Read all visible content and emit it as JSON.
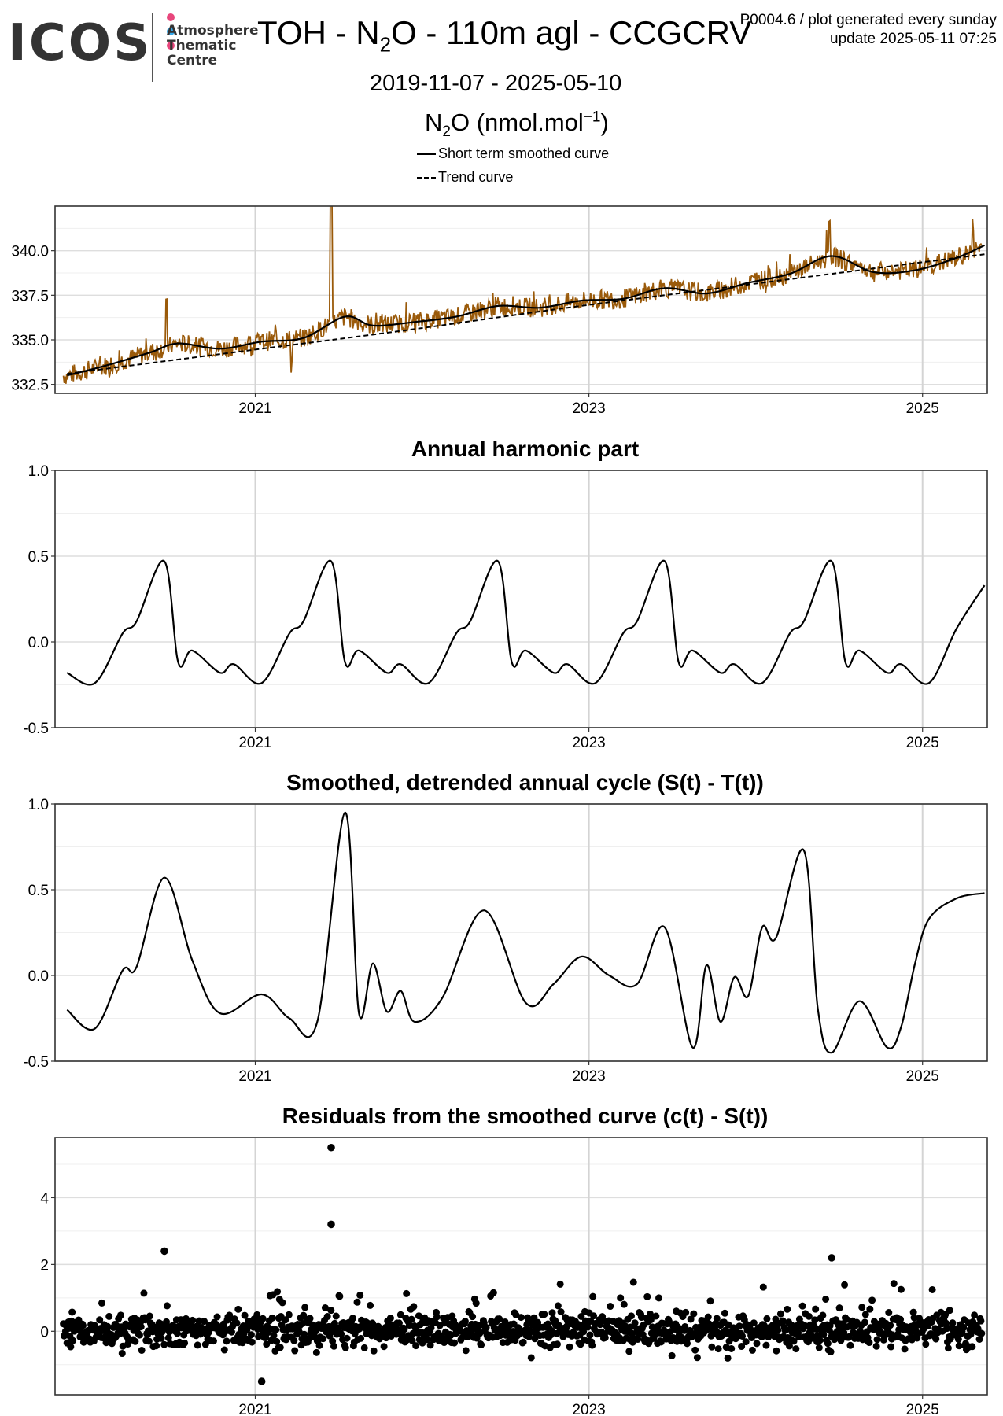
{
  "logo": {
    "wordmark": "ICOS",
    "line1": "Atmosphere",
    "line2": "Thematic",
    "line3": "Centre",
    "dot_colors": [
      "#e8467c",
      "#35a7e8",
      "#e8467c"
    ]
  },
  "header": {
    "title_pre": "TOH - N",
    "title_sub": "2",
    "title_post": "O - 110m agl - CCGCRV",
    "date_range": "2019-11-07 - 2025-05-10",
    "stamp_line1": "P0004.6 / plot generated every sunday",
    "stamp_line2": "update  2025-05-11 07:25"
  },
  "ylabel": {
    "pre": "N",
    "sub": "2",
    "post": "O (nmol.mol",
    "sup": "−1",
    "close": ")"
  },
  "legend": {
    "solid": "Short term smoothed curve",
    "dashed": "Trend curve"
  },
  "colors": {
    "data": "#9a5a0a",
    "curve": "#000000",
    "grid": "#d9d9d9"
  },
  "chart_data": [
    {
      "type": "line",
      "title": "",
      "x_ticks": [
        "2021",
        "2023",
        "2025"
      ],
      "x_range": [
        "2019-11-07",
        "2025-05-10"
      ],
      "ylim": [
        332.0,
        342.5
      ],
      "y_ticks": [
        "332.5",
        "335.0",
        "337.5",
        "340.0"
      ],
      "series": [
        {
          "name": "Short term smoothed curve",
          "x": [
            "2019-11",
            "2020-02",
            "2020-05",
            "2020-07",
            "2020-10",
            "2021-01",
            "2021-04",
            "2021-07",
            "2021-09",
            "2021-12",
            "2022-03",
            "2022-06",
            "2022-09",
            "2022-12",
            "2023-03",
            "2023-06",
            "2023-09",
            "2023-12",
            "2024-03",
            "2024-06",
            "2024-09",
            "2024-12",
            "2025-03",
            "2025-05"
          ],
          "y": [
            333.0,
            333.6,
            334.3,
            334.8,
            334.5,
            334.9,
            335.1,
            336.3,
            335.8,
            336.0,
            336.3,
            336.9,
            336.8,
            337.2,
            337.3,
            337.9,
            337.6,
            338.2,
            338.7,
            339.7,
            338.8,
            338.9,
            339.6,
            340.3
          ]
        },
        {
          "name": "Trend curve",
          "x": [
            "2019-11",
            "2020-11",
            "2021-11",
            "2022-11",
            "2023-11",
            "2024-11",
            "2025-05"
          ],
          "y": [
            333.1,
            334.3,
            335.5,
            336.8,
            338.0,
            339.2,
            339.8
          ]
        }
      ]
    },
    {
      "type": "line",
      "title": "Annual harmonic part",
      "x_ticks": [
        "2021",
        "2023",
        "2025"
      ],
      "ylim": [
        -0.5,
        1.0
      ],
      "y_ticks": [
        "-0.5",
        "0.0",
        "0.5",
        "1.0"
      ],
      "series": [
        {
          "x": [
            "2019-11",
            "2020-01",
            "2020-03",
            "2020-04",
            "2020-06",
            "2020-07",
            "2020-08",
            "2020-10",
            "2020-11",
            "2021-01",
            "2021-03",
            "2021-04",
            "2021-06",
            "2021-07",
            "2021-08",
            "2021-10",
            "2021-11",
            "2022-01",
            "2022-03",
            "2022-04",
            "2022-06",
            "2022-07",
            "2022-08",
            "2022-10",
            "2022-11",
            "2023-01",
            "2023-03",
            "2023-04",
            "2023-06",
            "2023-07",
            "2023-08",
            "2023-10",
            "2023-11",
            "2024-01",
            "2024-03",
            "2024-04",
            "2024-06",
            "2024-07",
            "2024-08",
            "2024-10",
            "2024-11",
            "2025-01",
            "2025-03",
            "2025-05"
          ],
          "y": [
            -0.18,
            -0.24,
            0.05,
            0.12,
            0.47,
            -0.12,
            -0.05,
            -0.18,
            -0.13,
            -0.24,
            0.05,
            0.12,
            0.47,
            -0.12,
            -0.05,
            -0.18,
            -0.13,
            -0.24,
            0.05,
            0.12,
            0.47,
            -0.12,
            -0.05,
            -0.18,
            -0.13,
            -0.24,
            0.05,
            0.12,
            0.47,
            -0.12,
            -0.05,
            -0.18,
            -0.13,
            -0.24,
            0.05,
            0.12,
            0.47,
            -0.12,
            -0.05,
            -0.18,
            -0.13,
            -0.24,
            0.08,
            0.33
          ]
        }
      ]
    },
    {
      "type": "line",
      "title": "Smoothed, detrended annual cycle (S(t) - T(t))",
      "x_ticks": [
        "2021",
        "2023",
        "2025"
      ],
      "ylim": [
        -0.5,
        1.0
      ],
      "y_ticks": [
        "-0.5",
        "0.0",
        "0.5",
        "1.0"
      ],
      "series": [
        {
          "x": [
            "2019-11",
            "2020-01",
            "2020-03",
            "2020-04",
            "2020-06",
            "2020-08",
            "2020-10",
            "2021-01",
            "2021-03",
            "2021-05",
            "2021-07",
            "2021-08",
            "2021-09",
            "2021-10",
            "2021-11",
            "2021-12",
            "2022-02",
            "2022-05",
            "2022-08",
            "2022-10",
            "2022-12",
            "2023-02",
            "2023-04",
            "2023-06",
            "2023-08",
            "2023-09",
            "2023-10",
            "2023-11",
            "2023-12",
            "2024-01",
            "2024-02",
            "2024-04",
            "2024-05",
            "2024-06",
            "2024-08",
            "2024-10",
            "2024-11",
            "2024-12",
            "2025-01",
            "2025-03",
            "2025-05"
          ],
          "y": [
            -0.2,
            -0.31,
            0.03,
            0.05,
            0.57,
            0.09,
            -0.22,
            -0.11,
            -0.25,
            -0.27,
            0.95,
            -0.22,
            0.07,
            -0.21,
            -0.09,
            -0.27,
            -0.13,
            0.38,
            -0.16,
            -0.05,
            0.11,
            0.0,
            -0.05,
            0.28,
            -0.42,
            0.06,
            -0.27,
            -0.01,
            -0.12,
            0.28,
            0.22,
            0.73,
            -0.19,
            -0.45,
            -0.15,
            -0.42,
            -0.3,
            0.07,
            0.33,
            0.45,
            0.48
          ]
        }
      ]
    },
    {
      "type": "scatter",
      "title": "Residuals from the smoothed curve (c(t) - S(t))",
      "x_ticks": [
        "2021",
        "2023",
        "2025"
      ],
      "ylim": [
        -1.9,
        5.8
      ],
      "y_ticks": [
        "0",
        "2",
        "4"
      ],
      "outliers": [
        {
          "x": "2021-06",
          "y": 5.5
        },
        {
          "x": "2021-06",
          "y": 3.2
        },
        {
          "x": "2020-06",
          "y": 2.4
        },
        {
          "x": "2024-06",
          "y": 2.2
        },
        {
          "x": "2021-01",
          "y": -1.5
        }
      ],
      "spread": {
        "min": -1.0,
        "max": 1.7,
        "typical": [
          -0.5,
          0.6
        ]
      }
    }
  ]
}
